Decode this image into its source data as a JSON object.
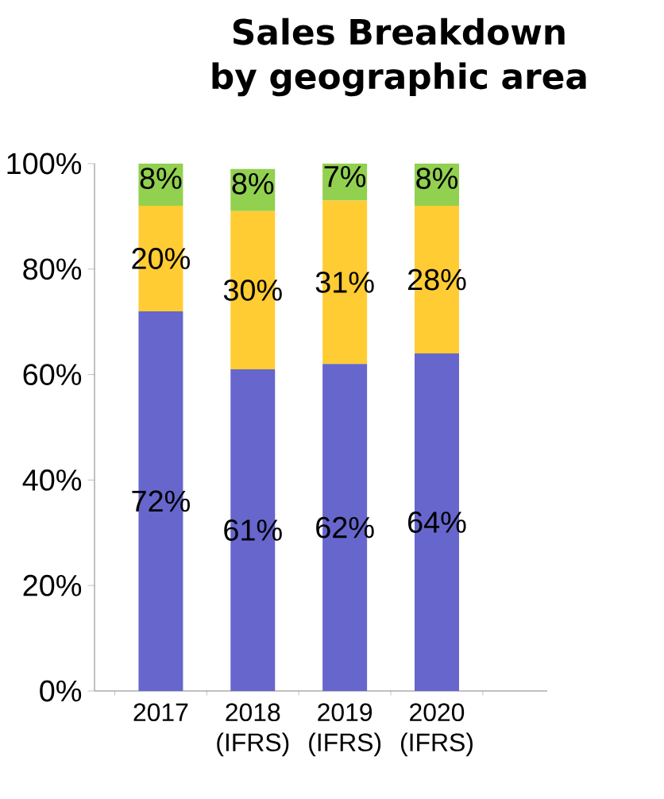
{
  "chart_data": {
    "type": "bar",
    "stacked": true,
    "title": "Sales Breakdown by geographic area",
    "categories": [
      "2017",
      "2018 (IFRS)",
      "2019 (IFRS)",
      "2020 (IFRS)"
    ],
    "series": [
      {
        "color": "#6666cc",
        "values": [
          72,
          61,
          62,
          64
        ],
        "value_labels": [
          "72%",
          "61%",
          "62%",
          "64%"
        ]
      },
      {
        "color": "#ffcc33",
        "values": [
          20,
          30,
          31,
          28
        ],
        "value_labels": [
          "20%",
          "30%",
          "31%",
          "28%"
        ]
      },
      {
        "color": "#92d050",
        "values": [
          8,
          8,
          7,
          8
        ],
        "value_labels": [
          "8%",
          "8%",
          "7%",
          "8%"
        ]
      }
    ],
    "ylim": [
      0,
      100
    ],
    "yticks": [
      {
        "value": 0,
        "label": "0%"
      },
      {
        "value": 20,
        "label": "20%"
      },
      {
        "value": 40,
        "label": "40%"
      },
      {
        "value": 60,
        "label": "60%"
      },
      {
        "value": 80,
        "label": "80%"
      },
      {
        "value": 100,
        "label": "100%"
      }
    ],
    "grid": false
  }
}
